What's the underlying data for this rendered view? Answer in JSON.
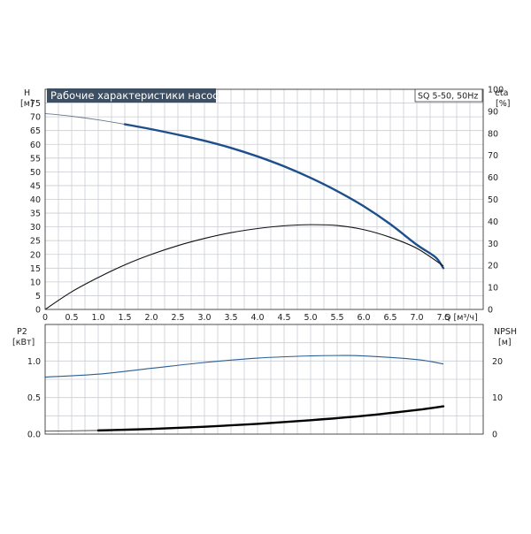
{
  "colors": {
    "title_bg": "#3d4f63",
    "title_fg": "#ffffff",
    "head_curve": "#1e4f8c",
    "eta_curve": "#111111",
    "npsh_curve": "#2a5d94",
    "p2_curve": "#000000",
    "grid": "#c9cdd3"
  },
  "chart_data": [
    {
      "type": "line",
      "title": "Рабочие характеристики насоса",
      "model_label": "SQ 5-50, 50Hz",
      "xlabel": "Q [м³/ч]",
      "ylabel": "H",
      "ylabel_unit": "[м]",
      "y2label": "eta",
      "y2label_unit": "[%]",
      "xlim": [
        0,
        8.25
      ],
      "ylim": [
        0,
        80
      ],
      "y2lim": [
        0,
        100
      ],
      "x_ticks": [
        "0",
        "0.5",
        "1.0",
        "1.5",
        "2.0",
        "2.5",
        "3.0",
        "3.5",
        "4.0",
        "4.5",
        "5.0",
        "5.5",
        "6.0",
        "6.5",
        "7.0",
        "7.5"
      ],
      "y_ticks": [
        "0",
        "5",
        "10",
        "15",
        "20",
        "25",
        "30",
        "35",
        "40",
        "45",
        "50",
        "55",
        "60",
        "65",
        "70",
        "75"
      ],
      "y2_ticks": [
        "0",
        "10",
        "20",
        "30",
        "40",
        "50",
        "60",
        "70",
        "80",
        "90",
        "100"
      ],
      "grid": true,
      "series": [
        {
          "axis": "left",
          "x": [
            0,
            0.5,
            1.0,
            1.5,
            2.0,
            2.5,
            3.0,
            3.5,
            4.0,
            4.5,
            5.0,
            5.5,
            6.0,
            6.5,
            7.0,
            7.35,
            7.5
          ],
          "values": [
            71.2,
            70.2,
            68.9,
            67.3,
            65.5,
            63.5,
            61.3,
            58.7,
            55.6,
            52.0,
            47.8,
            43.0,
            37.5,
            31.0,
            23.5,
            19.0,
            15.0
          ]
        },
        {
          "axis": "left",
          "x": [
            0,
            0.5,
            1.0,
            1.5,
            2.0,
            2.5,
            3.0,
            3.5,
            4.0,
            4.5,
            5.0,
            5.5,
            6.0,
            6.5,
            7.0,
            7.5
          ],
          "values": [
            0,
            6.4,
            11.6,
            16.2,
            20.0,
            23.2,
            25.8,
            27.9,
            29.4,
            30.4,
            30.8,
            30.5,
            29.0,
            26.2,
            22.2,
            15.8
          ]
        }
      ]
    },
    {
      "type": "line",
      "ylabel": "P2",
      "ylabel_unit": "[кВт]",
      "y2label": "NPSH",
      "y2label_unit": "[м]",
      "xlim": [
        0,
        8.25
      ],
      "ylim": [
        0,
        1.5
      ],
      "y2lim": [
        0,
        30
      ],
      "y_ticks": [
        "0.0",
        "0.5",
        "1.0"
      ],
      "y2_ticks": [
        "0",
        "10",
        "20"
      ],
      "grid": true,
      "series": [
        {
          "axis": "left",
          "x": [
            0,
            1.0,
            2.0,
            3.0,
            4.0,
            5.0,
            5.5,
            6.0,
            7.0,
            7.5
          ],
          "values": [
            0.78,
            0.82,
            0.9,
            0.98,
            1.04,
            1.07,
            1.075,
            1.07,
            1.02,
            0.96
          ]
        },
        {
          "axis": "left",
          "x": [
            0,
            1.0,
            2.0,
            3.0,
            4.0,
            5.0,
            6.0,
            7.0,
            7.5
          ],
          "values": [
            0.04,
            0.05,
            0.07,
            0.1,
            0.14,
            0.19,
            0.25,
            0.33,
            0.38
          ]
        }
      ]
    }
  ]
}
